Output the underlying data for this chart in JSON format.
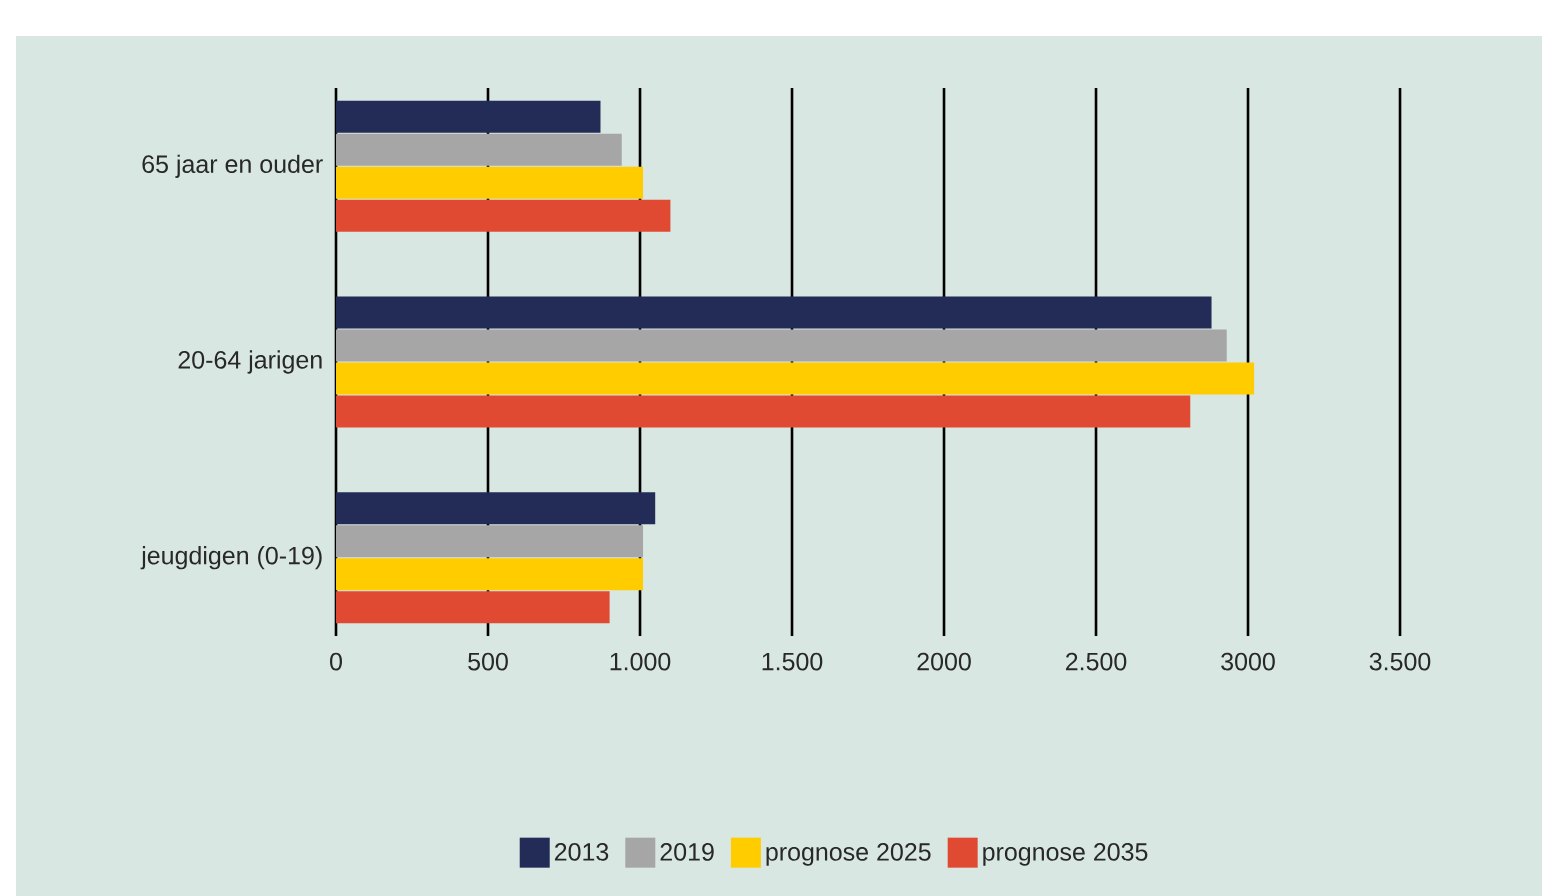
{
  "chart_data": {
    "type": "bar",
    "orientation": "horizontal",
    "categories": [
      "65 jaar en ouder",
      "20-64 jarigen",
      "jeugdigen (0-19)"
    ],
    "series": [
      {
        "name": "2013",
        "color": "#232b57",
        "values": [
          870,
          2880,
          1050
        ]
      },
      {
        "name": "2019",
        "color": "#a6a6a6",
        "values": [
          940,
          2930,
          1010
        ]
      },
      {
        "name": "prognose 2025",
        "color": "#ffcc00",
        "values": [
          1010,
          3020,
          1010
        ]
      },
      {
        "name": "prognose 2035",
        "color": "#e04a32",
        "values": [
          1100,
          2810,
          900
        ]
      }
    ],
    "xlim": [
      0,
      3500
    ],
    "xticks": [
      0,
      500,
      {
        "value": 1000,
        "label": "1.000"
      },
      {
        "value": 1500,
        "label": "1.500"
      },
      2000,
      {
        "value": 2500,
        "label": "2.500"
      },
      3000,
      {
        "value": 3500,
        "label": "3.500"
      }
    ],
    "grid": "x",
    "legend": "bottom"
  }
}
